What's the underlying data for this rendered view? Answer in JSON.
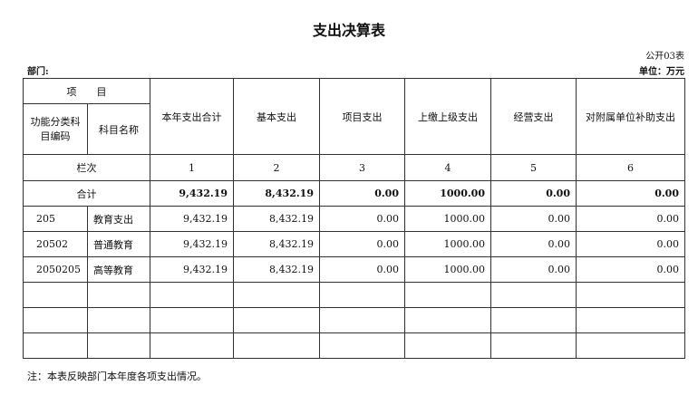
{
  "title": "支出决算表",
  "form_no": "公开03表",
  "department_label": "部门:",
  "unit_label": "单位：万元",
  "header": {
    "item": "项　　目",
    "code": "功能分类科目编码",
    "name": "科目名称",
    "columns": [
      "本年支出合计",
      "基本支出",
      "项目支出",
      "上缴上级支出",
      "经营支出",
      "对附属单位补助支出"
    ],
    "row_index_label": "栏次",
    "row_index": [
      "1",
      "2",
      "3",
      "4",
      "5",
      "6"
    ]
  },
  "total": {
    "label": "合计",
    "values": [
      "9,432.19",
      "8,432.19",
      "0.00",
      "1000.00",
      "0.00",
      "0.00"
    ]
  },
  "rows": [
    {
      "code": "205",
      "name": "教育支出",
      "values": [
        "9,432.19",
        "8,432.19",
        "0.00",
        "1000.00",
        "0.00",
        "0.00"
      ]
    },
    {
      "code": "20502",
      "name": "普通教育",
      "values": [
        "9,432.19",
        "8,432.19",
        "0.00",
        "1000.00",
        "0.00",
        "0.00"
      ]
    },
    {
      "code": "2050205",
      "name": "高等教育",
      "values": [
        "9,432.19",
        "8,432.19",
        "0.00",
        "1000.00",
        "0.00",
        "0.00"
      ]
    }
  ],
  "empty_rows": 3,
  "note": "注：本表反映部门本年度各项支出情况。"
}
